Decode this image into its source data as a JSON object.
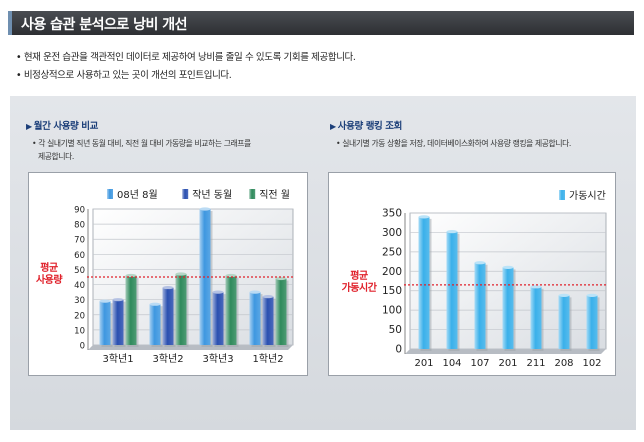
{
  "header": {
    "title": "사용 습관 분석으로 낭비 개선"
  },
  "bullets": [
    "• 현재 운전 습관을 객관적인 데이터로 제공하여 낭비를 줄일 수 있도록 기회를 제공합니다.",
    "• 비정상적으로 사용하고 있는 곳이 개선의 포인트입니다."
  ],
  "left_section": {
    "heading": "월간 사용량 비교",
    "desc_line1": "• 각 실내기별 직년 동월 대비, 직전 월 대비 가동량을 비교하는 그래프를",
    "desc_line2": "제공합니다."
  },
  "right_section": {
    "heading": "사용량 랭킹 조회",
    "desc_line1": "• 실내기별 가동 상황을 저장, 데이터베이스화하여 사용량 랭킹을 제공합니다."
  },
  "chart_data": [
    {
      "type": "bar",
      "categories": [
        "3학년1",
        "3학년2",
        "3학년3",
        "1학년2"
      ],
      "series": [
        {
          "name": "08년 8월",
          "values": [
            29,
            27,
            90,
            35
          ]
        },
        {
          "name": "작년 동월",
          "values": [
            30,
            38,
            35,
            32
          ]
        },
        {
          "name": "직전 월",
          "values": [
            46,
            47,
            46,
            44
          ]
        }
      ],
      "ylim": [
        0,
        90
      ],
      "yticks": [
        0,
        10,
        20,
        30,
        40,
        50,
        60,
        70,
        80,
        90
      ],
      "reference_line": {
        "value": 45,
        "label_line1": "평균",
        "label_line2": "사용량"
      },
      "colors": [
        "#3e97e0",
        "#2a4fb0",
        "#2f8a5c"
      ],
      "legend_position": "top"
    },
    {
      "type": "bar",
      "categories": [
        "201",
        "104",
        "107",
        "201",
        "211",
        "208",
        "102"
      ],
      "series": [
        {
          "name": "가동시간",
          "values": [
            340,
            302,
            222,
            210,
            160,
            138,
            138
          ]
        }
      ],
      "ylim": [
        0,
        350
      ],
      "yticks": [
        0,
        50,
        100,
        150,
        200,
        250,
        300,
        350
      ],
      "reference_line": {
        "value": 165,
        "label_line1": "평균",
        "label_line2": "가동시간"
      },
      "colors": [
        "#3ab0ea"
      ],
      "legend_position": "top-right"
    }
  ]
}
